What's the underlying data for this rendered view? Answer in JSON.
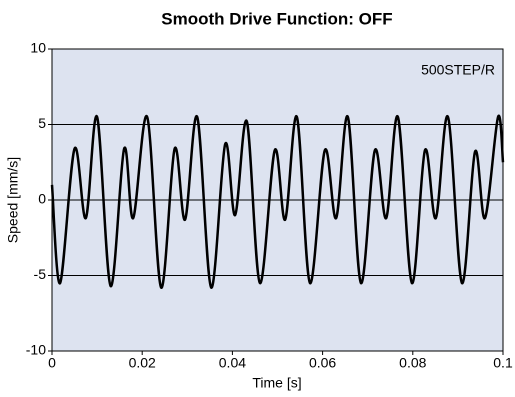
{
  "chart_data": {
    "type": "line",
    "title": "Smooth Drive Function: OFF",
    "x_label": "Time [s]",
    "y_label": "Speed [mm/s]",
    "annotation": "500STEP/R",
    "background": "#dde3f0",
    "grid": true,
    "xlim": [
      0,
      0.1
    ],
    "xticks": [
      0,
      0.02,
      0.04,
      0.06,
      0.08,
      0.1
    ],
    "ylim": [
      -10,
      10
    ],
    "yticks": [
      -10,
      -5,
      0,
      5,
      10
    ],
    "series": [
      {
        "name": "Speed",
        "color": "#000000",
        "x": [
          0,
          0.0018,
          0.005,
          0.0075,
          0.01,
          0.013,
          0.016,
          0.018,
          0.0211,
          0.0242,
          0.0272,
          0.0295,
          0.0322,
          0.0353,
          0.0384,
          0.0406,
          0.0432,
          0.0461,
          0.0494,
          0.0517,
          0.0543,
          0.0572,
          0.0605,
          0.063,
          0.0656,
          0.0685,
          0.0716,
          0.0741,
          0.0767,
          0.0798,
          0.0827,
          0.0851,
          0.0878,
          0.0909,
          0.0938,
          0.096,
          0.0989,
          0.1
        ],
        "values": [
          1,
          -5.5,
          3.4,
          -1.2,
          5.5,
          -5.7,
          3.4,
          -1.2,
          5.5,
          -5.8,
          3.4,
          -1.3,
          5.5,
          -5.8,
          3.7,
          -1.0,
          5.2,
          -5.5,
          3.3,
          -1.3,
          5.5,
          -5.5,
          3.3,
          -1.2,
          5.5,
          -5.5,
          3.3,
          -1.2,
          5.5,
          -5.5,
          3.3,
          -1.2,
          5.5,
          -5.5,
          3.2,
          -1.2,
          5.5,
          2.5
        ]
      }
    ]
  }
}
